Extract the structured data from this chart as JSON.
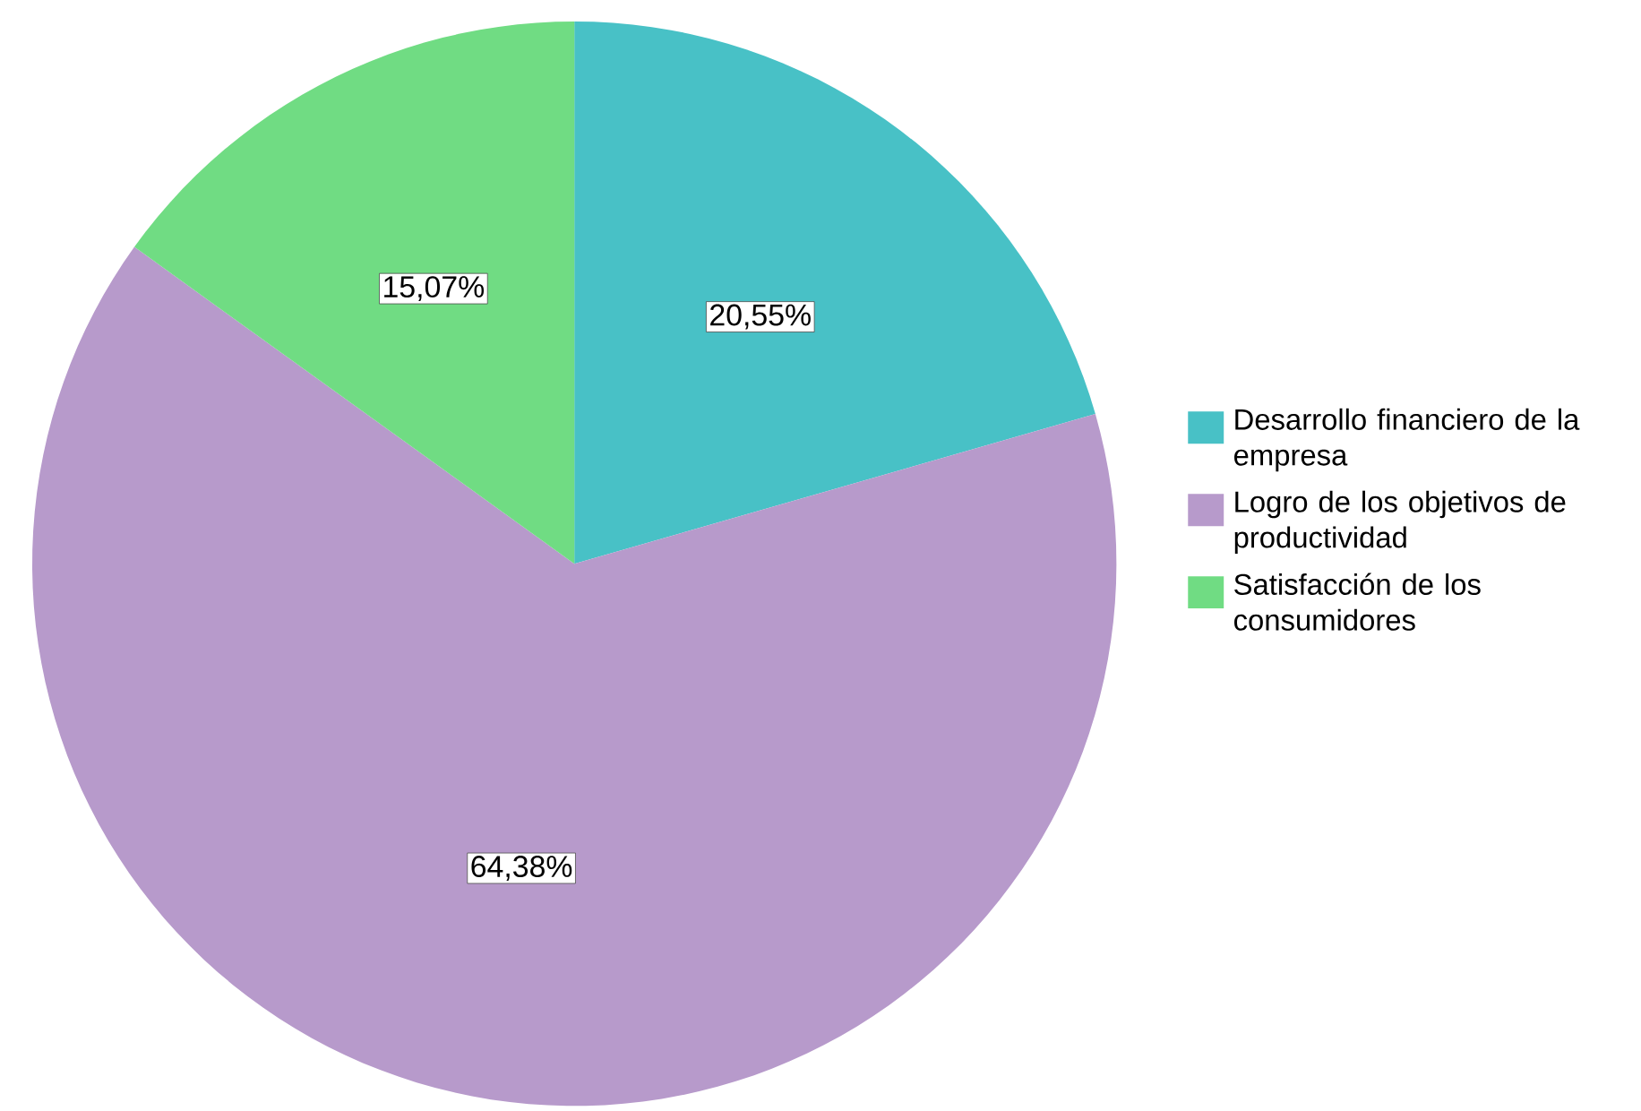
{
  "chart_data": {
    "type": "pie",
    "categories": [
      "Desarrollo financiero de la empresa",
      "Logro de los objetivos de productividad",
      "Satisfacción de los consumidores"
    ],
    "values": [
      20.55,
      64.38,
      15.07
    ],
    "colors": [
      "#48c1c6",
      "#b79acb",
      "#70dc83"
    ],
    "value_labels": [
      "20,55%",
      "64,38%",
      "15,07%"
    ],
    "legend": "right"
  }
}
